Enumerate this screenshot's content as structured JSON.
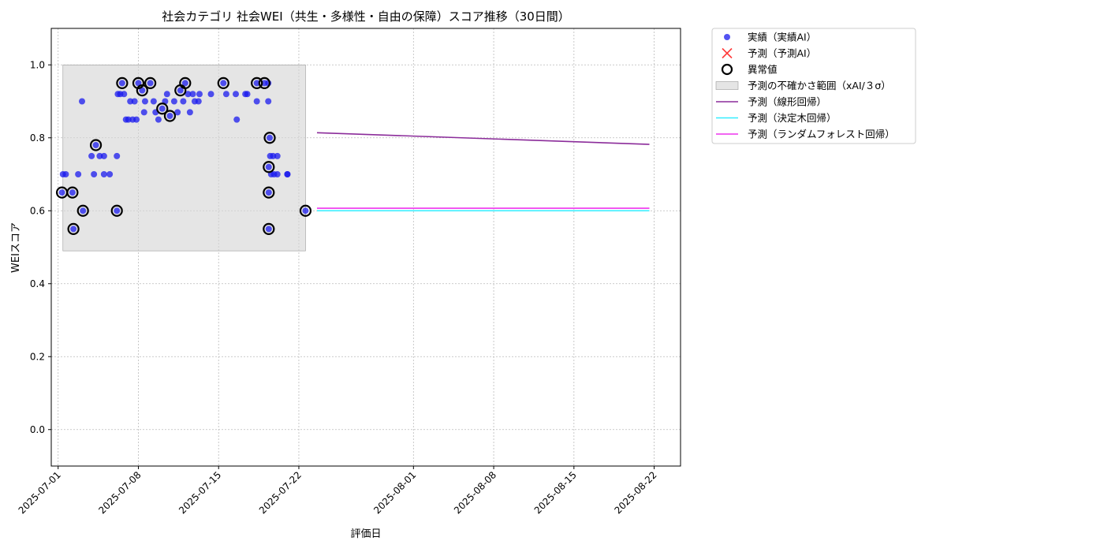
{
  "chart_data": {
    "type": "scatter",
    "title": "社会カテゴリ 社会WEI（共生・多様性・自由の保障）スコア推移（30日間）",
    "xlabel": "評価日",
    "ylabel": "WEIスコア",
    "xlim": [
      "2025-06-30T09:36",
      "2025-08-24T07:12"
    ],
    "ylim": [
      -0.1,
      1.1
    ],
    "x_ticks": [
      "2025-07-01",
      "2025-07-08",
      "2025-07-15",
      "2025-07-22",
      "2025-08-01",
      "2025-08-08",
      "2025-08-15",
      "2025-08-22"
    ],
    "y_ticks": [
      0.0,
      0.2,
      0.4,
      0.6,
      0.8,
      1.0
    ],
    "grid": true,
    "legend_position": "outside-top-right",
    "legend": [
      {
        "label": "実績（実績AI）",
        "marker": "dot",
        "color": "#1a1aee"
      },
      {
        "label": "予測（予測AI）",
        "marker": "x",
        "color": "#ff3b3b"
      },
      {
        "label": "異常値",
        "marker": "ring",
        "color": "#000000"
      },
      {
        "label": "予測の不確かさ範囲（xAI/３σ）",
        "marker": "band",
        "color": "#d3d3d3"
      },
      {
        "label": "予測（線形回帰）",
        "marker": "line",
        "color": "#8b2c9a"
      },
      {
        "label": "予測（決定木回帰）",
        "marker": "line",
        "color": "#33eeff"
      },
      {
        "label": "予測（ランダムフォレスト回帰）",
        "marker": "line",
        "color": "#ee33ee"
      }
    ],
    "uncertainty_band": {
      "x": [
        "2025-07-01T10:00",
        "2025-07-22T14:00"
      ],
      "y": [
        0.49,
        1.0
      ],
      "color": "#d3d3d3"
    },
    "series": [
      {
        "name": "実績（実績AI）",
        "color": "#1a1aee",
        "points": [
          [
            "2025-07-01T08:00",
            0.65
          ],
          [
            "2025-07-01T10:00",
            0.7
          ],
          [
            "2025-07-01T16:00",
            0.7
          ],
          [
            "2025-07-02T06:00",
            0.65
          ],
          [
            "2025-07-02T08:00",
            0.55
          ],
          [
            "2025-07-02T18:00",
            0.7
          ],
          [
            "2025-07-03T04:00",
            0.6
          ],
          [
            "2025-07-03T02:00",
            0.9
          ],
          [
            "2025-07-03T22:00",
            0.75
          ],
          [
            "2025-07-04T03:00",
            0.7
          ],
          [
            "2025-07-04T07:00",
            0.78
          ],
          [
            "2025-07-04T15:00",
            0.75
          ],
          [
            "2025-07-05T00:00",
            0.75
          ],
          [
            "2025-07-05T00:00",
            0.7
          ],
          [
            "2025-07-05T12:00",
            0.7
          ],
          [
            "2025-07-06T03:00",
            0.6
          ],
          [
            "2025-07-06T03:00",
            0.75
          ],
          [
            "2025-07-06T05:00",
            0.92
          ],
          [
            "2025-07-06T10:00",
            0.92
          ],
          [
            "2025-07-06T14:00",
            0.95
          ],
          [
            "2025-07-06T18:00",
            0.92
          ],
          [
            "2025-07-06T22:00",
            0.85
          ],
          [
            "2025-07-07T03:00",
            0.85
          ],
          [
            "2025-07-07T07:00",
            0.9
          ],
          [
            "2025-07-07T12:00",
            0.85
          ],
          [
            "2025-07-07T16:00",
            0.9
          ],
          [
            "2025-07-07T20:00",
            0.85
          ],
          [
            "2025-07-08T00:00",
            0.95
          ],
          [
            "2025-07-08T08:00",
            0.93
          ],
          [
            "2025-07-08T12:00",
            0.87
          ],
          [
            "2025-07-08T14:00",
            0.9
          ],
          [
            "2025-07-09T01:00",
            0.95
          ],
          [
            "2025-07-09T08:00",
            0.9
          ],
          [
            "2025-07-09T12:00",
            0.87
          ],
          [
            "2025-07-09T18:00",
            0.85
          ],
          [
            "2025-07-10T02:00",
            0.88
          ],
          [
            "2025-07-10T08:00",
            0.9
          ],
          [
            "2025-07-10T12:00",
            0.92
          ],
          [
            "2025-07-10T18:00",
            0.86
          ],
          [
            "2025-07-11T03:00",
            0.9
          ],
          [
            "2025-07-11T10:00",
            0.87
          ],
          [
            "2025-07-11T16:00",
            0.93
          ],
          [
            "2025-07-11T22:00",
            0.9
          ],
          [
            "2025-07-12T02:00",
            0.95
          ],
          [
            "2025-07-12T08:00",
            0.92
          ],
          [
            "2025-07-12T12:00",
            0.87
          ],
          [
            "2025-07-12T18:00",
            0.92
          ],
          [
            "2025-07-12T22:00",
            0.9
          ],
          [
            "2025-07-13T06:00",
            0.9
          ],
          [
            "2025-07-13T08:00",
            0.92
          ],
          [
            "2025-07-14T08:00",
            0.92
          ],
          [
            "2025-07-15T10:00",
            0.95
          ],
          [
            "2025-07-15T16:00",
            0.92
          ],
          [
            "2025-07-16T12:00",
            0.92
          ],
          [
            "2025-07-16T14:00",
            0.85
          ],
          [
            "2025-07-17T08:00",
            0.92
          ],
          [
            "2025-07-17T12:00",
            0.92
          ],
          [
            "2025-07-18T08:00",
            0.95
          ],
          [
            "2025-07-18T08:00",
            0.9
          ],
          [
            "2025-07-19T00:00",
            0.95
          ],
          [
            "2025-07-19T08:00",
            0.95
          ],
          [
            "2025-07-19T08:00",
            0.9
          ],
          [
            "2025-07-19T09:00",
            0.72
          ],
          [
            "2025-07-19T09:00",
            0.65
          ],
          [
            "2025-07-19T09:00",
            0.55
          ],
          [
            "2025-07-19T11:00",
            0.8
          ],
          [
            "2025-07-19T12:00",
            0.75
          ],
          [
            "2025-07-19T14:00",
            0.7
          ],
          [
            "2025-07-19T18:00",
            0.75
          ],
          [
            "2025-07-19T20:00",
            0.7
          ],
          [
            "2025-07-20T03:00",
            0.7
          ],
          [
            "2025-07-20T03:00",
            0.75
          ],
          [
            "2025-07-21T00:00",
            0.7
          ],
          [
            "2025-07-21T00:00",
            0.7
          ],
          [
            "2025-07-22T14:00",
            0.6
          ]
        ]
      },
      {
        "name": "異常値",
        "color": "#000000",
        "points": [
          [
            "2025-07-01T08:00",
            0.65
          ],
          [
            "2025-07-02T06:00",
            0.65
          ],
          [
            "2025-07-02T08:00",
            0.55
          ],
          [
            "2025-07-03T04:00",
            0.6
          ],
          [
            "2025-07-04T07:00",
            0.78
          ],
          [
            "2025-07-06T03:00",
            0.6
          ],
          [
            "2025-07-06T14:00",
            0.95
          ],
          [
            "2025-07-08T00:00",
            0.95
          ],
          [
            "2025-07-08T08:00",
            0.93
          ],
          [
            "2025-07-09T01:00",
            0.95
          ],
          [
            "2025-07-10T02:00",
            0.88
          ],
          [
            "2025-07-10T18:00",
            0.86
          ],
          [
            "2025-07-11T16:00",
            0.93
          ],
          [
            "2025-07-12T02:00",
            0.95
          ],
          [
            "2025-07-15T10:00",
            0.95
          ],
          [
            "2025-07-18T08:00",
            0.95
          ],
          [
            "2025-07-19T00:00",
            0.95
          ],
          [
            "2025-07-19T09:00",
            0.72
          ],
          [
            "2025-07-19T09:00",
            0.65
          ],
          [
            "2025-07-19T09:00",
            0.55
          ],
          [
            "2025-07-19T11:00",
            0.8
          ],
          [
            "2025-07-22T14:00",
            0.6
          ]
        ]
      },
      {
        "name": "予測（線形回帰）",
        "color": "#8b2c9a",
        "line": [
          [
            "2025-07-23T14:00",
            0.814
          ],
          [
            "2025-08-21T14:00",
            0.782
          ]
        ]
      },
      {
        "name": "予測（決定木回帰）",
        "color": "#33eeff",
        "line": [
          [
            "2025-07-23T14:00",
            0.6
          ],
          [
            "2025-08-21T14:00",
            0.6
          ]
        ]
      },
      {
        "name": "予測（ランダムフォレスト回帰）",
        "color": "#ee33ee",
        "line": [
          [
            "2025-07-23T14:00",
            0.607
          ],
          [
            "2025-08-21T14:00",
            0.607
          ]
        ]
      }
    ]
  }
}
